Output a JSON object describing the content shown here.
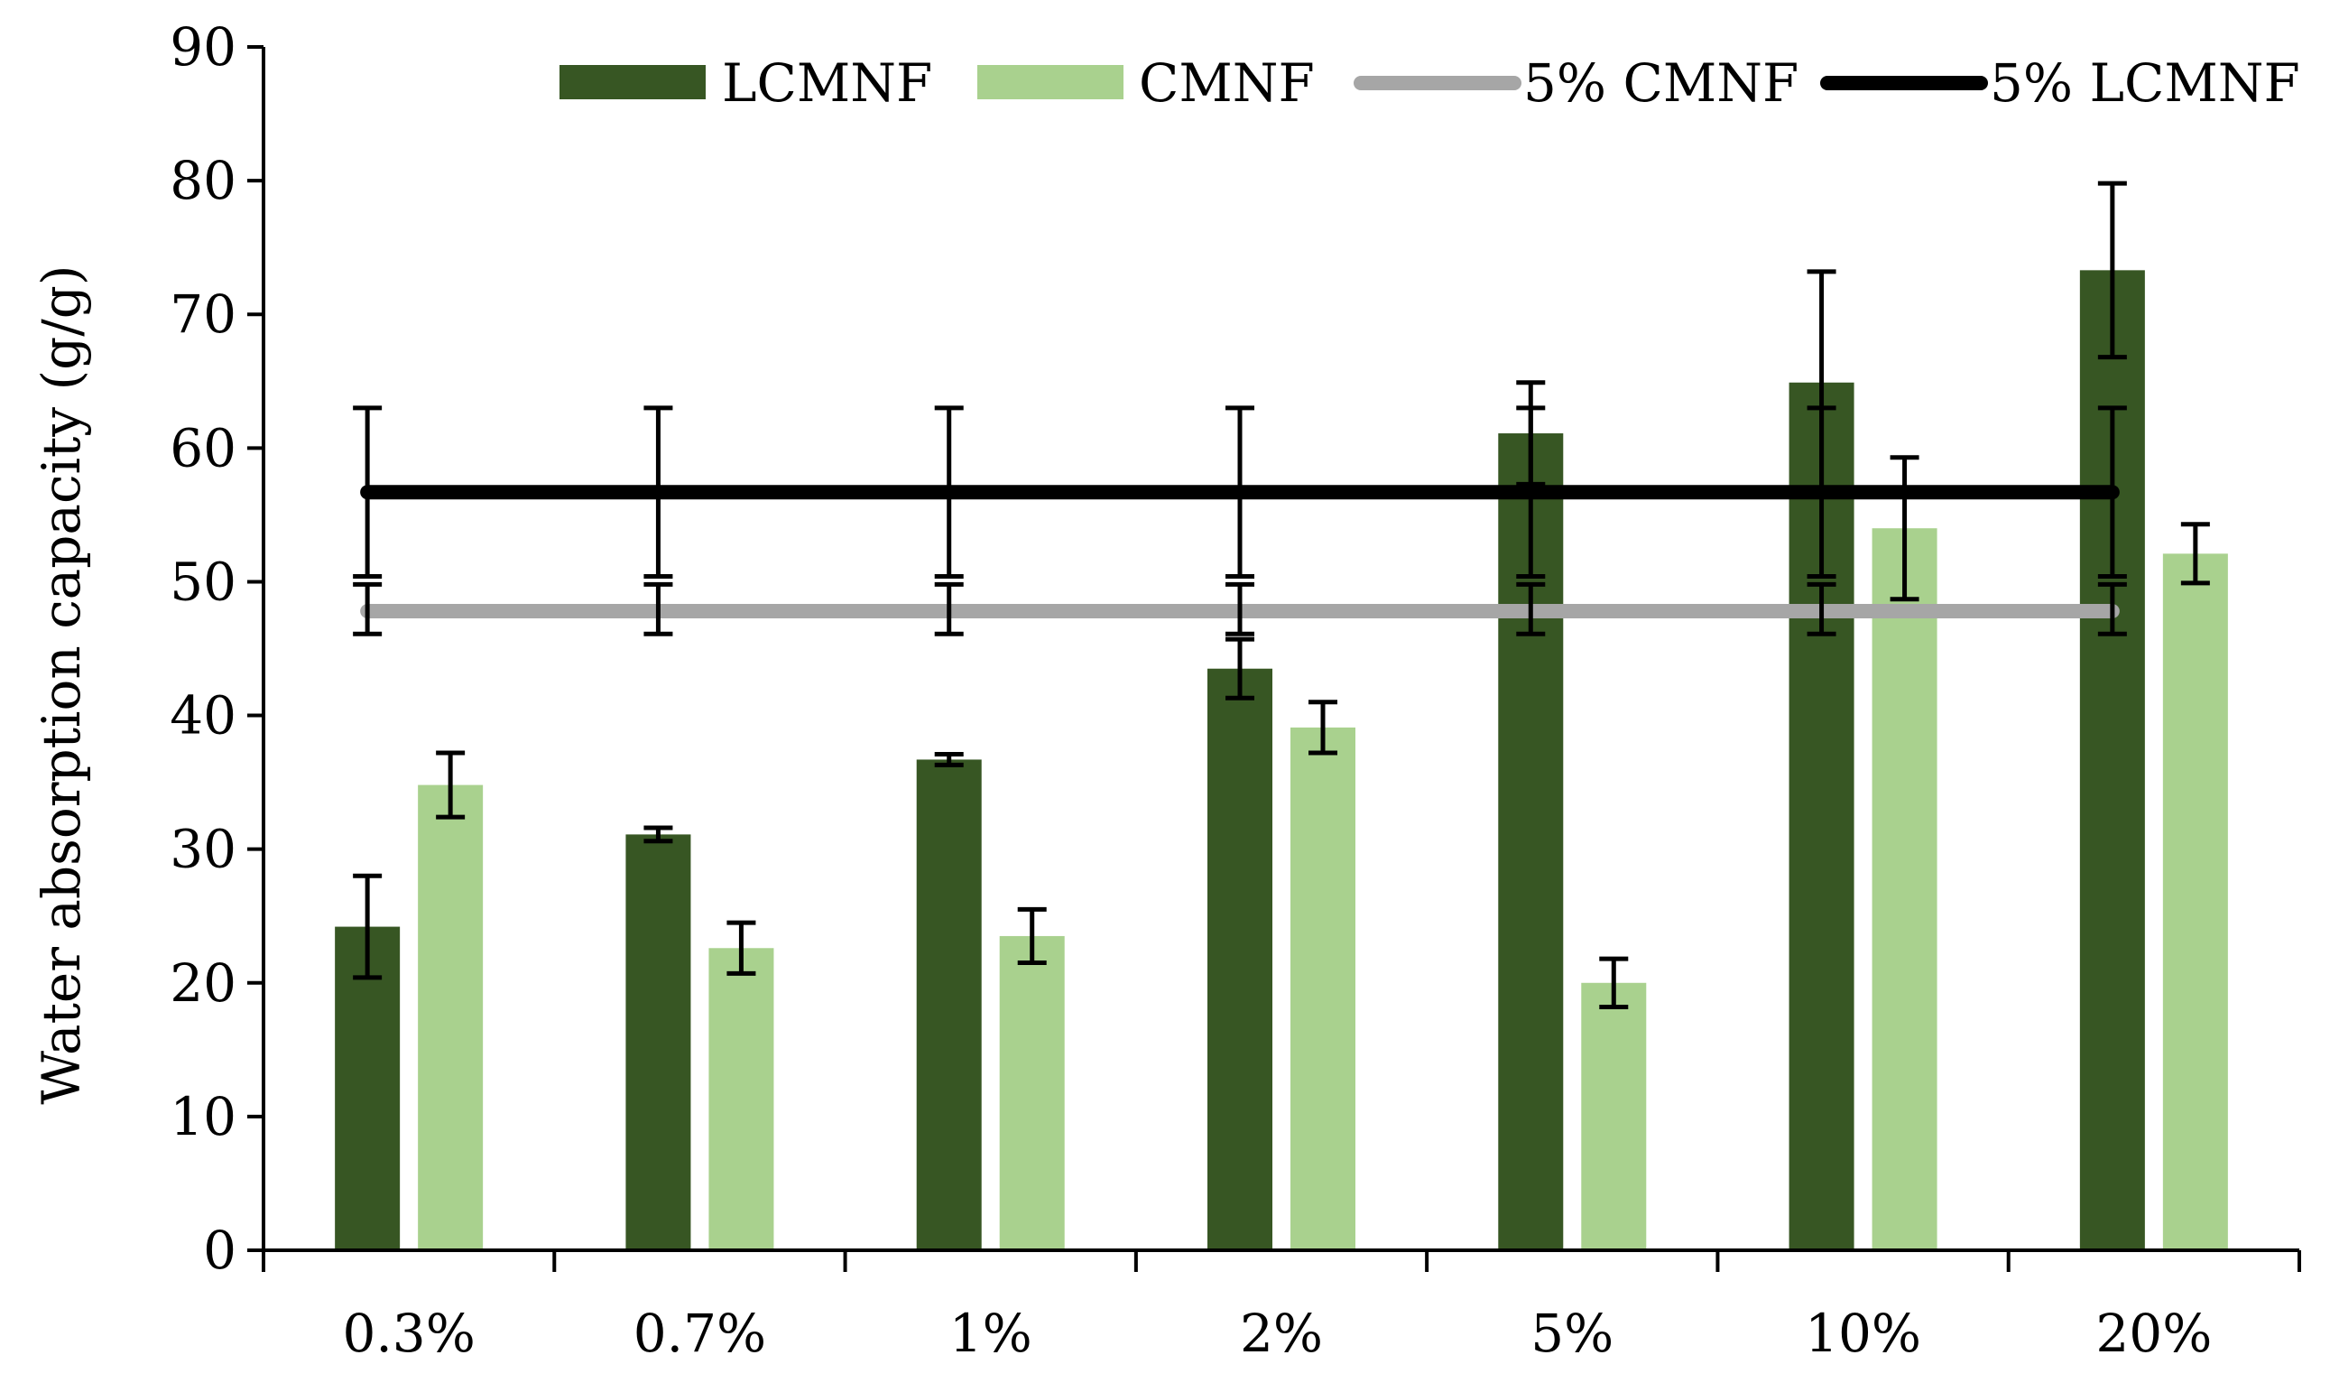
{
  "chart_data": {
    "type": "bar",
    "title": "",
    "xlabel": "",
    "ylabel": "Water absorption capacity (g/g)",
    "ylim": [
      0,
      90
    ],
    "yticks": [
      0,
      10,
      20,
      30,
      40,
      50,
      60,
      70,
      80,
      90
    ],
    "categories": [
      "0.3%",
      "0.7%",
      "1%",
      "2%",
      "5%",
      "10%",
      "20%"
    ],
    "series": [
      {
        "name": "LCMNF",
        "color": "#375623",
        "values": [
          24.2,
          31.1,
          36.7,
          43.5,
          61.1,
          64.9,
          73.3
        ],
        "errors": [
          3.8,
          0.5,
          0.4,
          2.2,
          3.8,
          8.3,
          6.5
        ]
      },
      {
        "name": "CMNF",
        "color": "#a9d18e",
        "values": [
          34.8,
          22.6,
          23.5,
          39.1,
          20.0,
          54.0,
          52.1
        ],
        "errors": [
          2.4,
          1.9,
          2.0,
          1.9,
          1.8,
          5.3,
          2.2
        ]
      }
    ],
    "reference_lines": [
      {
        "name": "5% CMNF",
        "color": "#a6a6a6",
        "value": 47.8,
        "error_minus": 1.7,
        "error_plus": 2.0
      },
      {
        "name": "5% LCMNF",
        "color": "#000000",
        "value": 56.7,
        "error_minus": 6.3,
        "error_plus": 6.3
      }
    ],
    "legend": [
      "LCMNF",
      "CMNF",
      "5% CMNF",
      "5% LCMNF"
    ],
    "legend_position": "top",
    "grid": false
  }
}
